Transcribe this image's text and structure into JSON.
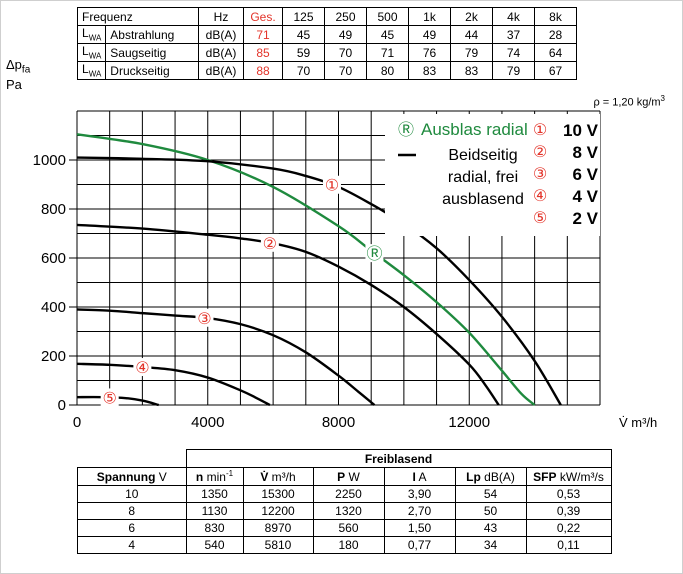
{
  "sound_table": {
    "header": [
      "Frequenz",
      "Hz",
      "Ges.",
      "125",
      "250",
      "500",
      "1k",
      "2k",
      "4k",
      "8k"
    ],
    "rows": [
      {
        "lwa": "L",
        "lwa_sub": "WA",
        "label": "Abstrahlung",
        "unit": "dB(A)",
        "total": "71",
        "values": [
          "45",
          "49",
          "45",
          "49",
          "44",
          "37",
          "28"
        ]
      },
      {
        "lwa": "L",
        "lwa_sub": "WA",
        "label": "Saugseitig",
        "unit": "dB(A)",
        "total": "85",
        "values": [
          "59",
          "70",
          "71",
          "76",
          "79",
          "74",
          "64"
        ]
      },
      {
        "lwa": "L",
        "lwa_sub": "WA",
        "label": "Druckseitig",
        "unit": "dB(A)",
        "total": "88",
        "values": [
          "70",
          "70",
          "80",
          "83",
          "83",
          "79",
          "67"
        ]
      }
    ]
  },
  "y_axis_label": {
    "delta": "Δp",
    "sub": "fa",
    "unit": "Pa"
  },
  "density": {
    "text": "ρ = 1,20 kg/m",
    "sup": "3"
  },
  "x_axis_unit": "V̇  m³/h",
  "legend": {
    "green_symbol": "Ⓡ",
    "green_label": "Ausblas radial",
    "black_label_lines": [
      "Beidseitig",
      "radial, frei",
      "ausblasend"
    ],
    "speeds": [
      {
        "mark": "①",
        "label": "10 V"
      },
      {
        "mark": "②",
        "label": "8 V"
      },
      {
        "mark": "③",
        "label": "6 V"
      },
      {
        "mark": "④",
        "label": "4 V"
      },
      {
        "mark": "⑤",
        "label": "2 V"
      }
    ]
  },
  "colors": {
    "red": "#e3342a",
    "green": "#1f8a3e",
    "black": "#000000"
  },
  "chart_data": {
    "type": "line",
    "xlabel": "V̇ m³/h",
    "ylabel": "Δpfa Pa",
    "xlim": [
      0,
      16000
    ],
    "ylim": [
      0,
      1200
    ],
    "x_ticks": [
      0,
      4000,
      8000,
      12000
    ],
    "y_ticks": [
      0,
      200,
      400,
      600,
      800,
      1000
    ],
    "grid": true,
    "series": [
      {
        "name": "Ausblas radial",
        "color": "green",
        "curve_marker": "Ⓡ",
        "x": [
          0,
          2000,
          4000,
          6000,
          8000,
          9000,
          10000,
          11000,
          12000,
          13000,
          13600,
          14000
        ],
        "y": [
          1105,
          1065,
          1000,
          890,
          730,
          630,
          530,
          420,
          295,
          140,
          45,
          0
        ]
      },
      {
        "name": "10 V",
        "color": "black",
        "curve_marker": "①",
        "x": [
          0,
          2000,
          4000,
          6000,
          7000,
          8000,
          9000,
          10000,
          11000,
          12000,
          13000,
          14000,
          14800
        ],
        "y": [
          1010,
          1005,
          995,
          965,
          935,
          890,
          820,
          740,
          640,
          510,
          360,
          180,
          0
        ]
      },
      {
        "name": "8 V",
        "color": "black",
        "curve_marker": "②",
        "x": [
          0,
          2000,
          4000,
          5000,
          6000,
          7000,
          8000,
          9000,
          10000,
          11000,
          12000,
          12500,
          12900
        ],
        "y": [
          735,
          720,
          695,
          680,
          660,
          625,
          565,
          490,
          400,
          290,
          165,
          80,
          0
        ]
      },
      {
        "name": "6 V",
        "color": "black",
        "curve_marker": "③",
        "x": [
          0,
          1000,
          2000,
          3000,
          4000,
          5000,
          6000,
          7000,
          8000,
          8600,
          9100
        ],
        "y": [
          390,
          385,
          375,
          365,
          355,
          330,
          285,
          215,
          120,
          55,
          0
        ]
      },
      {
        "name": "4 V",
        "color": "black",
        "curve_marker": "④",
        "x": [
          0,
          1000,
          2000,
          3000,
          4000,
          5000,
          5500,
          5900
        ],
        "y": [
          168,
          164,
          155,
          142,
          112,
          60,
          28,
          0
        ]
      },
      {
        "name": "2 V",
        "color": "black",
        "curve_marker": "⑤",
        "x": [
          0,
          800,
          1500,
          2000,
          2500
        ],
        "y": [
          32,
          32,
          28,
          18,
          0
        ]
      }
    ]
  },
  "perf_table": {
    "group_header": "Freiblasend",
    "columns": [
      {
        "bold": "Spannung",
        "unit": " V"
      },
      {
        "bold": "n",
        "unit": " min",
        "sup": "-1"
      },
      {
        "bold": "V̇",
        "unit": " m³/h"
      },
      {
        "bold": "P",
        "unit": " W"
      },
      {
        "bold": "I",
        "unit": " A"
      },
      {
        "bold": "Lp",
        "unit": " dB(A)"
      },
      {
        "bold": "SFP",
        "unit": " kW/m³/s"
      }
    ],
    "rows": [
      [
        "10",
        "1350",
        "15300",
        "2250",
        "3,90",
        "54",
        "0,53"
      ],
      [
        "8",
        "1130",
        "12200",
        "1320",
        "2,70",
        "50",
        "0,39"
      ],
      [
        "6",
        "830",
        "8970",
        "560",
        "1,50",
        "43",
        "0,22"
      ],
      [
        "4",
        "540",
        "5810",
        "180",
        "0,77",
        "34",
        "0,11"
      ]
    ]
  }
}
